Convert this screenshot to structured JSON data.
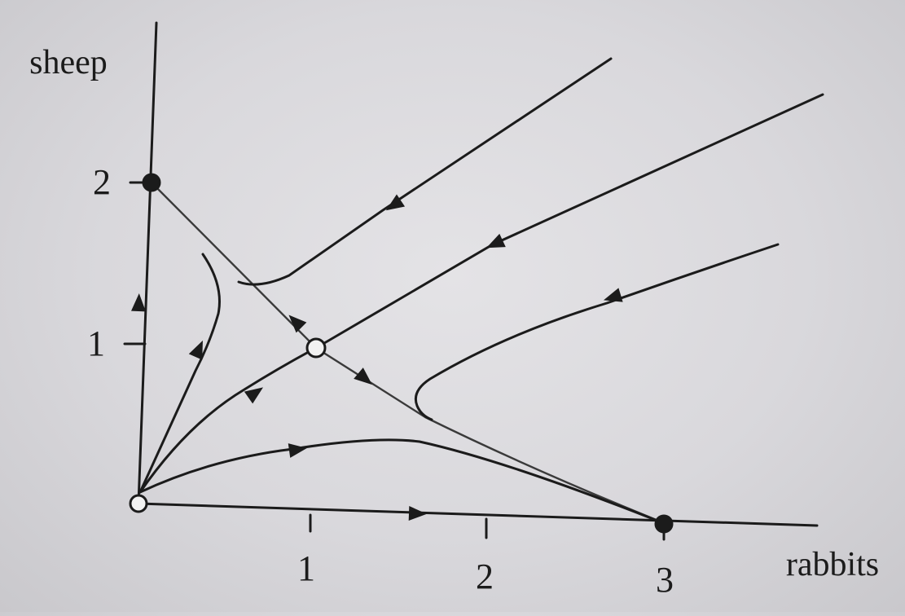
{
  "axes": {
    "x_label": "rabbits",
    "y_label": "sheep",
    "x_ticks": [
      "1",
      "2",
      "3"
    ],
    "y_ticks": [
      "1",
      "2"
    ],
    "xlim": [
      0,
      3.9
    ],
    "ylim": [
      0,
      2.9
    ]
  },
  "fixed_points": [
    {
      "name": "origin",
      "x": 0,
      "y": 0,
      "kind": "unstable"
    },
    {
      "name": "sheep-only",
      "x": 0,
      "y": 2,
      "kind": "stable"
    },
    {
      "name": "coexistence",
      "x": 1,
      "y": 1,
      "kind": "saddle"
    },
    {
      "name": "rabbits-only",
      "x": 3,
      "y": 0,
      "kind": "stable"
    }
  ],
  "colors": {
    "ink": "#1b1b1b",
    "background": "#dcdbdf"
  }
}
